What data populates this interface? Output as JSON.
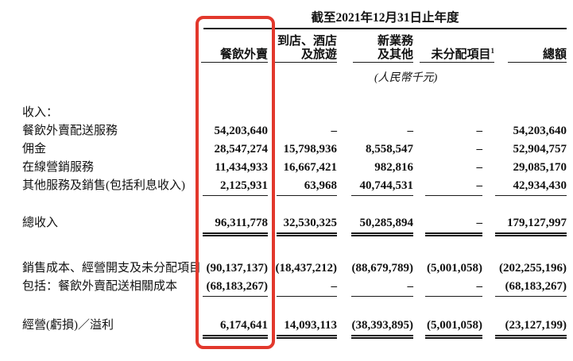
{
  "table": {
    "period_title": "截至2021年12月31日止年度",
    "unit_note": "(人民幣千元)",
    "highlight_color": "#e2382c",
    "highlighted_column": "餐飲外賣",
    "footnote_marker": "1",
    "columns": [
      {
        "lines": [
          "餐飲外賣"
        ],
        "sup": ""
      },
      {
        "lines": [
          "到店、酒店",
          "及旅遊"
        ],
        "sup": ""
      },
      {
        "lines": [
          "新業務",
          "及其他"
        ],
        "sup": ""
      },
      {
        "lines": [
          "未分配項目"
        ],
        "sup": "1"
      },
      {
        "lines": [
          "總額"
        ],
        "sup": ""
      }
    ],
    "sections": [
      {
        "rule": "single",
        "rows": [
          {
            "label": "收入：",
            "values": null
          },
          {
            "label": "餐飲外賣配送服務",
            "values": [
              "54,203,640",
              "–",
              "–",
              "–",
              "54,203,640"
            ]
          },
          {
            "label": "佣金",
            "values": [
              "28,547,274",
              "15,798,936",
              "8,558,547",
              "–",
              "52,904,757"
            ]
          },
          {
            "label": "在線營銷服務",
            "values": [
              "11,434,933",
              "16,667,421",
              "982,816",
              "–",
              "29,085,170"
            ]
          },
          {
            "label": "其他服務及銷售(包括利息收入)",
            "values": [
              "2,125,931",
              "63,968",
              "40,744,531",
              "–",
              "42,934,430"
            ]
          }
        ]
      },
      {
        "rule": "double",
        "rows": [
          {
            "label": "總收入",
            "values": [
              "96,311,778",
              "32,530,325",
              "50,285,894",
              "–",
              "179,127,997"
            ]
          }
        ]
      },
      {
        "rule": "single",
        "rows": [
          {
            "label": "銷售成本、經營開支及未分配項目",
            "values": [
              "(90,137,137)",
              "(18,437,212)",
              "(88,679,789)",
              "(5,001,058)",
              "(202,255,196)"
            ]
          },
          {
            "label": "包括：餐飲外賣配送相關成本",
            "values": [
              "(68,183,267)",
              "–",
              "–",
              "–",
              "(68,183,267)"
            ]
          }
        ]
      },
      {
        "rule": "double",
        "rows": [
          {
            "label": "經營(虧損)／溢利",
            "values": [
              "6,174,641",
              "14,093,113",
              "(38,393,895)",
              "(5,001,058)",
              "(23,127,199)"
            ]
          }
        ]
      }
    ]
  }
}
